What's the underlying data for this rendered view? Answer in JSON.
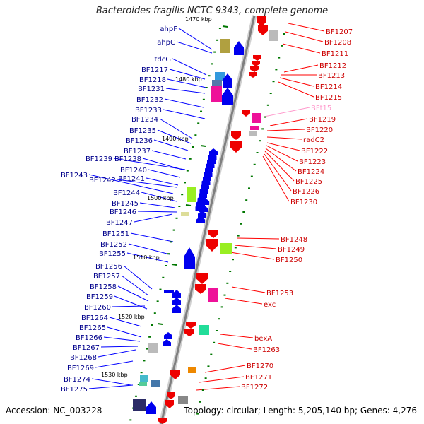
{
  "title": "Bacteroides fragilis NCTC 9343, complete genome",
  "accession": "Accession: NC_003228",
  "topology": "Topology: circular; Length: 5,205,140 bp; Genes: 4,276",
  "colors": {
    "left_label": "#00008b",
    "left_line": "#0000ff",
    "right_label": "#cc0000",
    "right_line": "#ff0000",
    "pink_label": "#ff99cc",
    "scale_tick": "#007700",
    "backbone": "#888888"
  },
  "scale": [
    {
      "label": "1470 kbp"
    },
    {
      "label": "1480 kbp"
    },
    {
      "label": "1490 kbp"
    },
    {
      "label": "1500 kbp"
    },
    {
      "label": "1510 kbp"
    },
    {
      "label": "1520 kbp"
    },
    {
      "label": "1530 kbp"
    }
  ],
  "left_genes": [
    {
      "label": "ahpF"
    },
    {
      "label": "ahpC"
    },
    {
      "label": "tdcG"
    },
    {
      "label": "BF1217"
    },
    {
      "label": "BF1218"
    },
    {
      "label": "BF1231"
    },
    {
      "label": "BF1232"
    },
    {
      "label": "BF1233"
    },
    {
      "label": "BF1234"
    },
    {
      "label": "BF1235"
    },
    {
      "label": "BF1236"
    },
    {
      "label": "BF1237"
    },
    {
      "label": "BF1239"
    },
    {
      "label": "BF1238"
    },
    {
      "label": "BF1240"
    },
    {
      "label": "BF1243"
    },
    {
      "label": "BF1242"
    },
    {
      "label": "BF1241"
    },
    {
      "label": "BF1244"
    },
    {
      "label": "BF1245"
    },
    {
      "label": "BF1246"
    },
    {
      "label": "BF1247"
    },
    {
      "label": "BF1251"
    },
    {
      "label": "BF1252"
    },
    {
      "label": "BF1255"
    },
    {
      "label": "BF1256"
    },
    {
      "label": "BF1257"
    },
    {
      "label": "BF1258"
    },
    {
      "label": "BF1259"
    },
    {
      "label": "BF1260"
    },
    {
      "label": "BF1264"
    },
    {
      "label": "BF1265"
    },
    {
      "label": "BF1266"
    },
    {
      "label": "BF1267"
    },
    {
      "label": "BF1268"
    },
    {
      "label": "BF1269"
    },
    {
      "label": "BF1274"
    },
    {
      "label": "BF1275"
    }
  ],
  "right_genes": [
    {
      "label": "BF1207"
    },
    {
      "label": "BF1208"
    },
    {
      "label": "BF1211"
    },
    {
      "label": "BF1212"
    },
    {
      "label": "BF1213"
    },
    {
      "label": "BF1214"
    },
    {
      "label": "BF1215"
    },
    {
      "label": "BFt15"
    },
    {
      "label": "BF1219"
    },
    {
      "label": "BF1220"
    },
    {
      "label": "radC2"
    },
    {
      "label": "BF1222"
    },
    {
      "label": "BF1223"
    },
    {
      "label": "BF1224"
    },
    {
      "label": "BF1225"
    },
    {
      "label": "BF1226"
    },
    {
      "label": "BF1230"
    },
    {
      "label": "BF1248"
    },
    {
      "label": "BF1249"
    },
    {
      "label": "BF1250"
    },
    {
      "label": "BF1253"
    },
    {
      "label": "exc"
    },
    {
      "label": "bexA"
    },
    {
      "label": "BF1263"
    },
    {
      "label": "BF1270"
    },
    {
      "label": "BF1271"
    },
    {
      "label": "BF1272"
    }
  ]
}
